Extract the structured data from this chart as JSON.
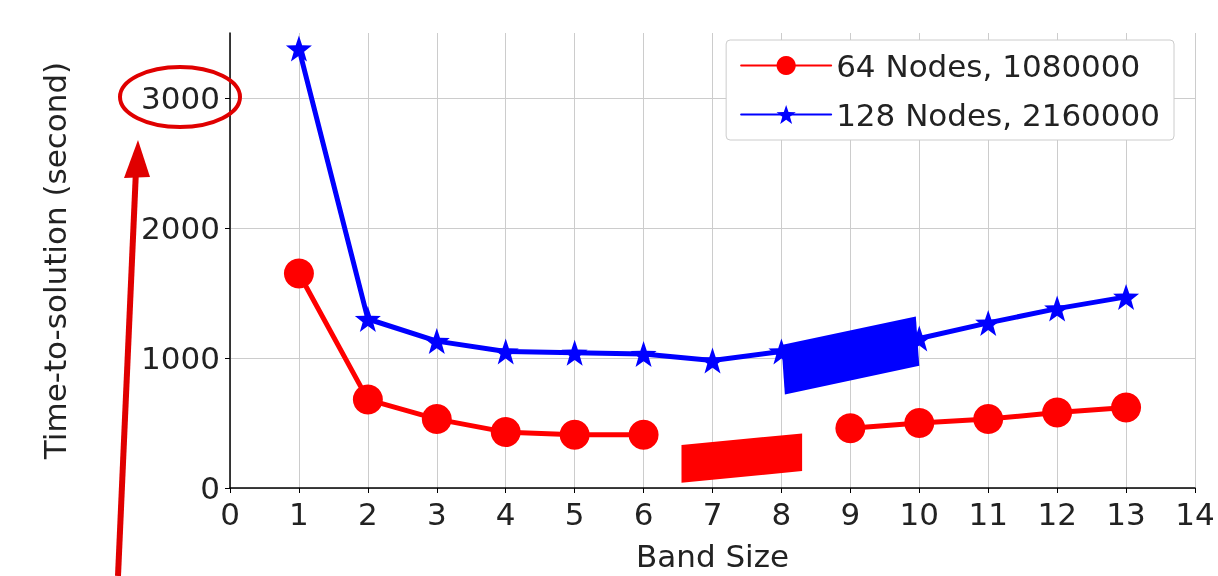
{
  "chart_data": {
    "type": "line",
    "xlabel": "Band Size",
    "ylabel": "Time-to-solution (second)",
    "x": [
      1,
      2,
      3,
      4,
      5,
      6,
      7,
      8,
      9,
      10,
      11,
      12,
      13
    ],
    "series": [
      {
        "name": "64 Nodes, 1080000",
        "color": "#ff0000",
        "marker": "circle",
        "values": [
          1650,
          680,
          530,
          430,
          410,
          410,
          null,
          null,
          460,
          500,
          530,
          580,
          620
        ]
      },
      {
        "name": "128 Nodes, 2160000",
        "color": "#0000ff",
        "marker": "star",
        "values": [
          3380,
          1300,
          1130,
          1050,
          1040,
          1030,
          980,
          1050,
          null,
          1150,
          1270,
          1380,
          1470
        ]
      }
    ],
    "xlim": [
      0,
      14
    ],
    "xticks": [
      0,
      1,
      2,
      3,
      4,
      5,
      6,
      7,
      8,
      9,
      10,
      11,
      12,
      13,
      14
    ],
    "ylim": [
      0,
      3500
    ],
    "yticks": [
      0,
      1000,
      2000,
      3000
    ],
    "grid": true,
    "legend": "top right",
    "line_style": "solid"
  }
}
